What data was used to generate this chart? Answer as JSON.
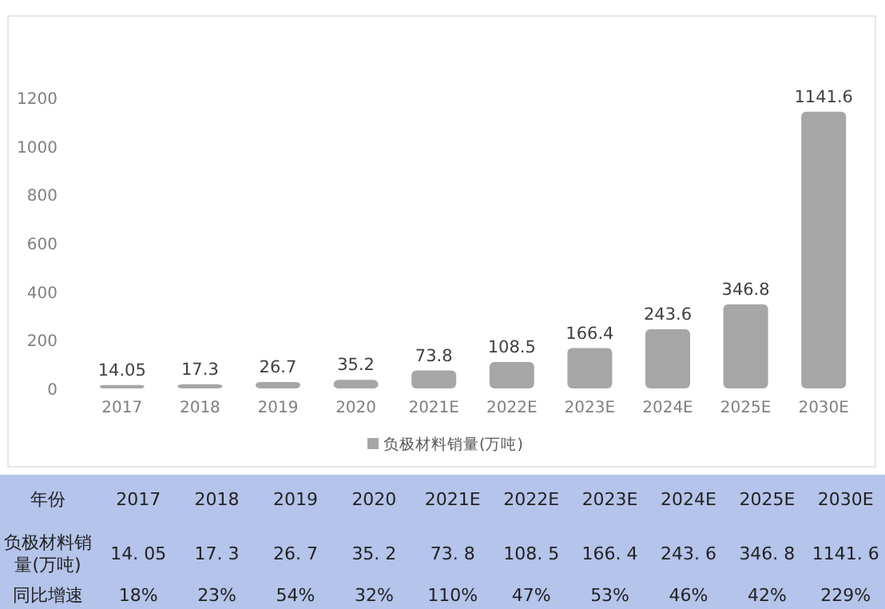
{
  "chart_data": {
    "type": "bar",
    "categories": [
      "2017",
      "2018",
      "2019",
      "2020",
      "2021E",
      "2022E",
      "2023E",
      "2024E",
      "2025E",
      "2030E"
    ],
    "series": [
      {
        "name": "负极材料销量(万吨)",
        "color": "#a6a6a6",
        "values": [
          14.05,
          17.3,
          26.7,
          35.2,
          73.8,
          108.5,
          166.4,
          243.6,
          346.8,
          1141.6
        ],
        "value_labels": [
          "14.05",
          "17.3",
          "26.7",
          "35.2",
          "73.8",
          "108.5",
          "166.4",
          "243.6",
          "346.8",
          "1141.6"
        ]
      }
    ],
    "ylim": [
      0,
      1200
    ],
    "yticks": [
      0,
      200,
      400,
      600,
      800,
      1000,
      1200
    ],
    "legend": "bottom",
    "grid": false,
    "annotations": [
      "年份",
      "同比增速",
      "18%",
      "23%",
      "54%",
      "32%",
      "110%",
      "47%",
      "53%",
      "46%",
      "42%",
      "229%",
      "14. 05",
      "17. 3",
      "26. 7",
      "35. 2",
      "73. 8",
      "108. 5",
      "166. 4",
      "243. 6",
      "346. 8",
      "1141. 6"
    ]
  }
}
